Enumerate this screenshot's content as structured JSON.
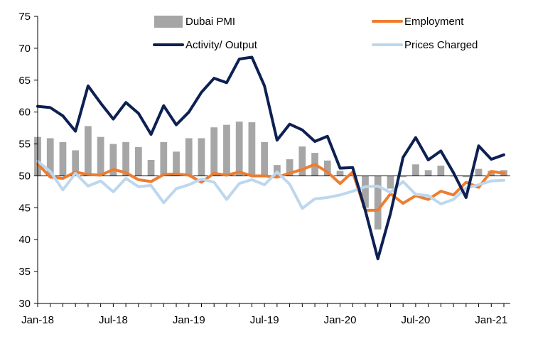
{
  "chart_data": {
    "type": "bar",
    "title": "",
    "xlabel": "",
    "ylabel": "",
    "ylim": [
      30,
      75
    ],
    "y_ticks": [
      "30",
      "35",
      "40",
      "45",
      "50",
      "55",
      "60",
      "65",
      "70",
      "75"
    ],
    "x_tick_labels": [
      "Jan-18",
      "Jul-18",
      "Jan-19",
      "Jul-19",
      "Jan-20",
      "Jul-20",
      "Jan-21"
    ],
    "bar_baseline": 50,
    "categories": [
      "Jan-18",
      "Feb-18",
      "Mar-18",
      "Apr-18",
      "May-18",
      "Jun-18",
      "Jul-18",
      "Aug-18",
      "Sep-18",
      "Oct-18",
      "Nov-18",
      "Dec-18",
      "Jan-19",
      "Feb-19",
      "Mar-19",
      "Apr-19",
      "May-19",
      "Jun-19",
      "Jul-19",
      "Aug-19",
      "Sep-19",
      "Oct-19",
      "Nov-19",
      "Dec-19",
      "Jan-20",
      "Feb-20",
      "Mar-20",
      "Apr-20",
      "May-20",
      "Jun-20",
      "Jul-20",
      "Aug-20",
      "Sep-20",
      "Oct-20",
      "Nov-20",
      "Dec-20",
      "Jan-21",
      "Feb-21"
    ],
    "series": [
      {
        "name": "Dubai PMI",
        "kind": "bar",
        "color": "#a6a6a6",
        "values": [
          56.1,
          55.9,
          55.3,
          54.0,
          57.8,
          56.1,
          55.0,
          55.3,
          54.5,
          52.5,
          55.3,
          53.8,
          55.9,
          55.9,
          57.6,
          58.0,
          58.5,
          58.4,
          55.3,
          51.7,
          52.6,
          54.6,
          53.6,
          52.4,
          50.8,
          50.0,
          45.0,
          41.6,
          48.0,
          49.8,
          51.8,
          50.9,
          51.6,
          49.9,
          49.8,
          51.1,
          50.8,
          50.9
        ]
      },
      {
        "name": "Employment",
        "kind": "line",
        "color": "#ed7d31",
        "values": [
          51.9,
          49.8,
          49.6,
          50.6,
          50.2,
          50.1,
          51.0,
          50.5,
          49.4,
          49.1,
          50.2,
          50.3,
          50.1,
          49.0,
          50.4,
          50.1,
          50.6,
          50.0,
          50.0,
          49.8,
          50.4,
          51.0,
          51.8,
          50.6,
          48.8,
          50.6,
          44.6,
          44.6,
          47.2,
          45.7,
          46.9,
          46.3,
          47.6,
          47.0,
          49.0,
          48.2,
          50.7,
          50.4
        ]
      },
      {
        "name": "Activity/ Output",
        "kind": "line",
        "color": "#0d2052",
        "values": [
          60.9,
          60.7,
          59.4,
          57.0,
          64.1,
          61.4,
          58.9,
          61.5,
          59.8,
          56.5,
          61.0,
          58.0,
          60.0,
          63.1,
          65.3,
          64.6,
          68.3,
          68.6,
          64.1,
          55.6,
          58.1,
          57.2,
          55.4,
          56.2,
          51.2,
          51.3,
          44.6,
          37.0,
          44.1,
          52.9,
          56.0,
          52.5,
          53.9,
          50.5,
          46.6,
          54.7,
          52.6,
          53.3
        ]
      },
      {
        "name": "Prices Charged",
        "kind": "line",
        "color": "#bdd7ee",
        "values": [
          52.3,
          50.7,
          47.8,
          50.4,
          48.4,
          49.2,
          47.5,
          49.6,
          48.3,
          48.5,
          45.8,
          48.0,
          48.6,
          49.5,
          49.0,
          46.3,
          48.8,
          49.4,
          48.6,
          50.6,
          48.7,
          44.9,
          46.4,
          46.6,
          47.0,
          47.6,
          48.3,
          48.4,
          47.4,
          49.1,
          47.1,
          46.9,
          45.6,
          46.3,
          48.1,
          48.6,
          49.2,
          49.3
        ]
      }
    ]
  }
}
